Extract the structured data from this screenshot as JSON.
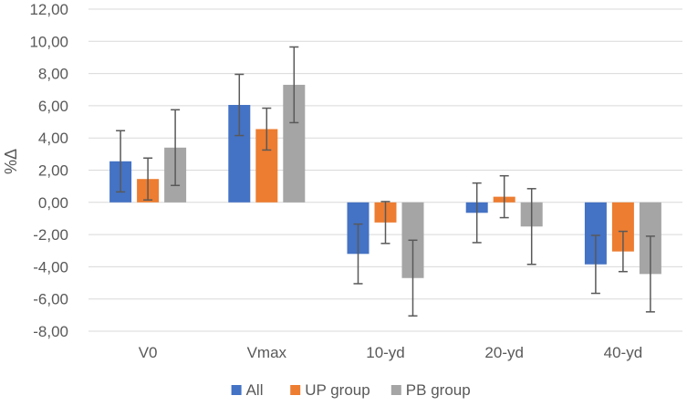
{
  "chart_data": {
    "type": "bar",
    "title": "",
    "xlabel": "",
    "ylabel": "%Δ",
    "ylim": [
      -8,
      12
    ],
    "ytick_step": 2,
    "ytick_labels": [
      "-8,00",
      "-6,00",
      "-4,00",
      "-2,00",
      "0,00",
      "2,00",
      "4,00",
      "6,00",
      "8,00",
      "10,00",
      "12,00"
    ],
    "grid": true,
    "legend_position": "bottom",
    "categories": [
      "V0",
      "Vmax",
      "10-yd",
      "20-yd",
      "40-yd"
    ],
    "series": [
      {
        "name": "All",
        "color": "#4472C4",
        "values": [
          2.55,
          6.05,
          -3.2,
          -0.65,
          -3.85
        ],
        "error": [
          1.9,
          1.9,
          1.85,
          1.85,
          1.8
        ]
      },
      {
        "name": "UP group",
        "color": "#ED7D31",
        "values": [
          1.45,
          4.55,
          -1.25,
          0.35,
          -3.05
        ],
        "error": [
          1.3,
          1.3,
          1.3,
          1.3,
          1.25
        ]
      },
      {
        "name": "PB group",
        "color": "#A5A5A5",
        "values": [
          3.4,
          7.3,
          -4.7,
          -1.5,
          -4.45
        ],
        "error": [
          2.35,
          2.35,
          2.35,
          2.35,
          2.35
        ]
      }
    ],
    "error_bar_color": "#595959",
    "gridline_color": "#D9D9D9",
    "text_color": "#595959"
  }
}
